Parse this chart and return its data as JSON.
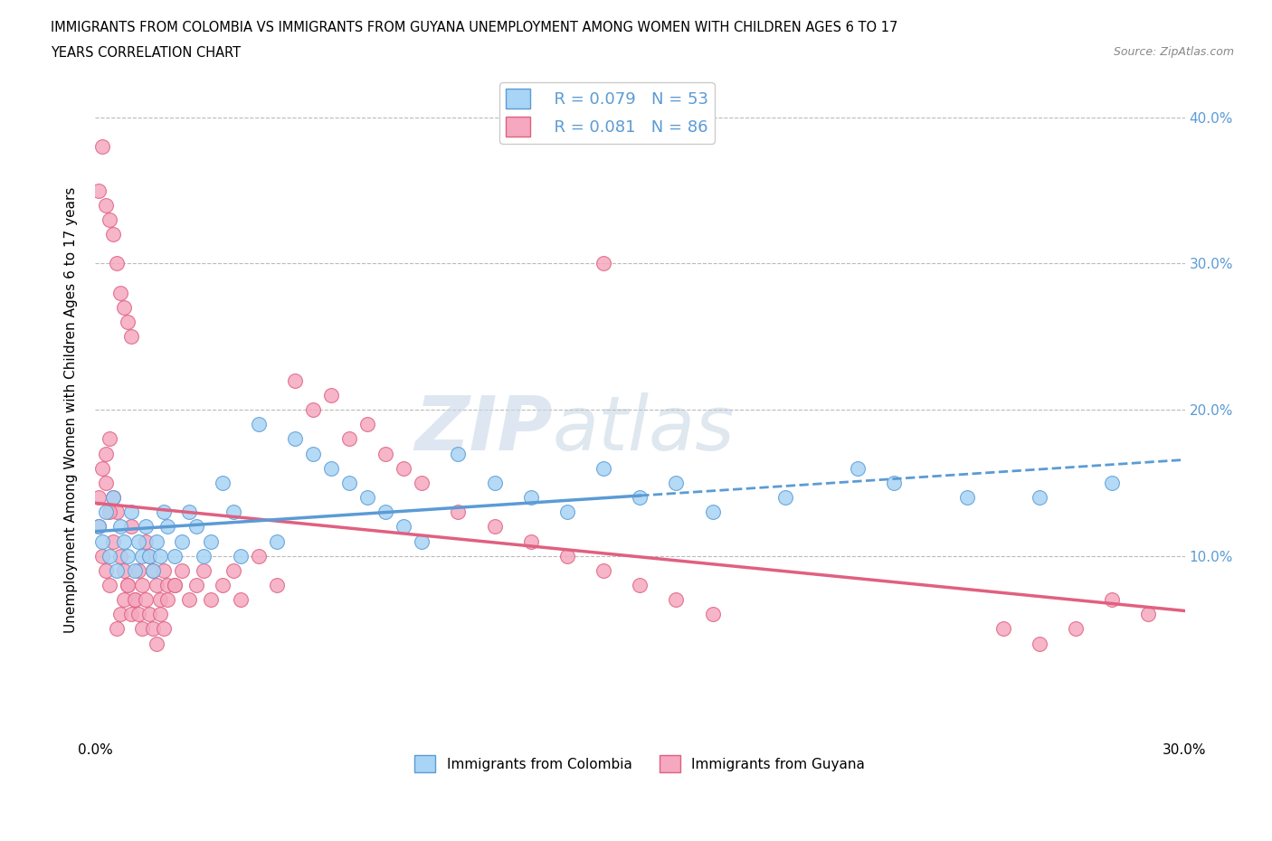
{
  "title_line1": "IMMIGRANTS FROM COLOMBIA VS IMMIGRANTS FROM GUYANA UNEMPLOYMENT AMONG WOMEN WITH CHILDREN AGES 6 TO 17",
  "title_line2": "YEARS CORRELATION CHART",
  "source_text": "Source: ZipAtlas.com",
  "ylabel": "Unemployment Among Women with Children Ages 6 to 17 years",
  "xlim": [
    0.0,
    0.3
  ],
  "ylim": [
    -0.025,
    0.425
  ],
  "watermark_zip": "ZIP",
  "watermark_atlas": "atlas",
  "legend_label1": "Immigrants from Colombia",
  "legend_label2": "Immigrants from Guyana",
  "legend_R1": "R = 0.079",
  "legend_N1": "N = 53",
  "legend_R2": "R = 0.081",
  "legend_N2": "N = 86",
  "color_colombia": "#a8d4f5",
  "color_guyana": "#f5a8c0",
  "edge_colombia": "#5b9bd5",
  "edge_guyana": "#e06080",
  "trendline_colombia": "#5b9bd5",
  "trendline_guyana": "#e06080",
  "background_color": "#ffffff",
  "grid_color": "#bbbbbb",
  "colombia_x": [
    0.001,
    0.002,
    0.003,
    0.004,
    0.005,
    0.006,
    0.007,
    0.008,
    0.009,
    0.01,
    0.011,
    0.012,
    0.013,
    0.014,
    0.015,
    0.016,
    0.017,
    0.018,
    0.019,
    0.02,
    0.022,
    0.024,
    0.026,
    0.028,
    0.03,
    0.032,
    0.035,
    0.038,
    0.04,
    0.045,
    0.05,
    0.055,
    0.06,
    0.065,
    0.07,
    0.075,
    0.08,
    0.085,
    0.09,
    0.1,
    0.11,
    0.12,
    0.13,
    0.14,
    0.15,
    0.16,
    0.17,
    0.19,
    0.21,
    0.22,
    0.24,
    0.26,
    0.28
  ],
  "colombia_y": [
    0.12,
    0.11,
    0.13,
    0.1,
    0.14,
    0.09,
    0.12,
    0.11,
    0.1,
    0.13,
    0.09,
    0.11,
    0.1,
    0.12,
    0.1,
    0.09,
    0.11,
    0.1,
    0.13,
    0.12,
    0.1,
    0.11,
    0.13,
    0.12,
    0.1,
    0.11,
    0.15,
    0.13,
    0.1,
    0.19,
    0.11,
    0.18,
    0.17,
    0.16,
    0.15,
    0.14,
    0.13,
    0.12,
    0.11,
    0.17,
    0.15,
    0.14,
    0.13,
    0.16,
    0.14,
    0.15,
    0.13,
    0.14,
    0.16,
    0.15,
    0.14,
    0.14,
    0.15
  ],
  "guyana_x": [
    0.001,
    0.002,
    0.003,
    0.004,
    0.005,
    0.006,
    0.007,
    0.008,
    0.009,
    0.01,
    0.011,
    0.012,
    0.013,
    0.014,
    0.015,
    0.016,
    0.017,
    0.018,
    0.019,
    0.02,
    0.001,
    0.002,
    0.003,
    0.004,
    0.005,
    0.006,
    0.007,
    0.008,
    0.009,
    0.01,
    0.022,
    0.024,
    0.026,
    0.028,
    0.03,
    0.032,
    0.035,
    0.038,
    0.04,
    0.045,
    0.05,
    0.055,
    0.06,
    0.065,
    0.07,
    0.075,
    0.08,
    0.085,
    0.09,
    0.1,
    0.11,
    0.12,
    0.13,
    0.14,
    0.15,
    0.16,
    0.17,
    0.002,
    0.003,
    0.004,
    0.001,
    0.003,
    0.004,
    0.005,
    0.006,
    0.007,
    0.008,
    0.009,
    0.01,
    0.011,
    0.012,
    0.013,
    0.014,
    0.015,
    0.016,
    0.017,
    0.018,
    0.019,
    0.02,
    0.022,
    0.14,
    0.28,
    0.29,
    0.25,
    0.26,
    0.27
  ],
  "guyana_y": [
    0.12,
    0.1,
    0.09,
    0.08,
    0.11,
    0.13,
    0.1,
    0.09,
    0.08,
    0.12,
    0.07,
    0.09,
    0.08,
    0.11,
    0.1,
    0.09,
    0.08,
    0.07,
    0.09,
    0.08,
    0.35,
    0.38,
    0.34,
    0.33,
    0.32,
    0.3,
    0.28,
    0.27,
    0.26,
    0.25,
    0.08,
    0.09,
    0.07,
    0.08,
    0.09,
    0.07,
    0.08,
    0.09,
    0.07,
    0.1,
    0.08,
    0.22,
    0.2,
    0.21,
    0.18,
    0.19,
    0.17,
    0.16,
    0.15,
    0.13,
    0.12,
    0.11,
    0.1,
    0.09,
    0.08,
    0.07,
    0.06,
    0.16,
    0.17,
    0.18,
    0.14,
    0.15,
    0.13,
    0.14,
    0.05,
    0.06,
    0.07,
    0.08,
    0.06,
    0.07,
    0.06,
    0.05,
    0.07,
    0.06,
    0.05,
    0.04,
    0.06,
    0.05,
    0.07,
    0.08,
    0.3,
    0.07,
    0.06,
    0.05,
    0.04,
    0.05
  ]
}
